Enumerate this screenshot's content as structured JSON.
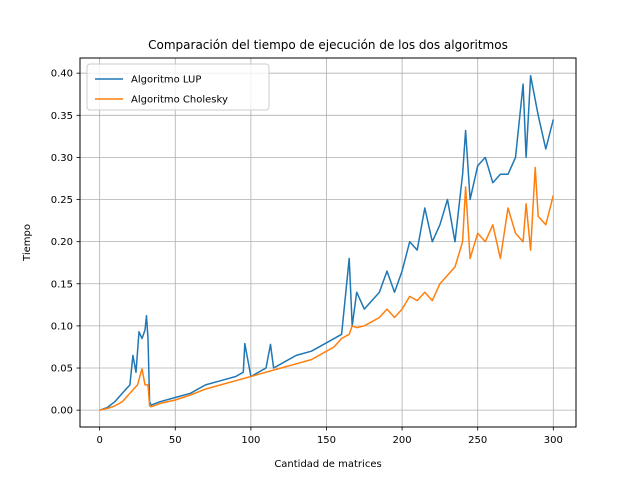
{
  "chart_data": {
    "type": "line",
    "title": "Comparación del tiempo de ejecución de los dos algoritmos",
    "xlabel": "Cantidad de matrices",
    "ylabel": "Tiempo",
    "xlim": [
      -13,
      315
    ],
    "ylim": [
      -0.02,
      0.418
    ],
    "xticks": [
      0,
      50,
      100,
      150,
      200,
      250,
      300
    ],
    "xtick_labels": [
      "0",
      "50",
      "100",
      "150",
      "200",
      "250",
      "300"
    ],
    "yticks": [
      0.0,
      0.05,
      0.1,
      0.15,
      0.2,
      0.25,
      0.3,
      0.35,
      0.4
    ],
    "ytick_labels": [
      "0.00",
      "0.05",
      "0.10",
      "0.15",
      "0.20",
      "0.25",
      "0.30",
      "0.35",
      "0.40"
    ],
    "grid": true,
    "legend_position": "top-left",
    "series": [
      {
        "name": "Algoritmo LUP",
        "color": "#1f77b4",
        "x": [
          0,
          5,
          10,
          15,
          20,
          22,
          24,
          26,
          28,
          30,
          31,
          32,
          33,
          34,
          40,
          50,
          60,
          70,
          80,
          90,
          95,
          96,
          100,
          110,
          113,
          115,
          120,
          130,
          140,
          150,
          160,
          165,
          167,
          170,
          175,
          180,
          185,
          190,
          195,
          200,
          205,
          210,
          215,
          220,
          225,
          230,
          235,
          240,
          242,
          245,
          250,
          255,
          260,
          265,
          270,
          275,
          280,
          282,
          285,
          290,
          295,
          300
        ],
        "y": [
          0.0,
          0.003,
          0.01,
          0.02,
          0.03,
          0.065,
          0.045,
          0.093,
          0.085,
          0.095,
          0.112,
          0.085,
          0.01,
          0.006,
          0.01,
          0.015,
          0.02,
          0.03,
          0.035,
          0.04,
          0.045,
          0.079,
          0.04,
          0.05,
          0.078,
          0.05,
          0.055,
          0.065,
          0.07,
          0.08,
          0.09,
          0.18,
          0.1,
          0.14,
          0.12,
          0.13,
          0.14,
          0.165,
          0.14,
          0.165,
          0.2,
          0.19,
          0.24,
          0.2,
          0.22,
          0.25,
          0.2,
          0.28,
          0.332,
          0.25,
          0.29,
          0.3,
          0.27,
          0.28,
          0.28,
          0.3,
          0.387,
          0.3,
          0.397,
          0.35,
          0.31,
          0.345
        ]
      },
      {
        "name": "Algoritmo Cholesky",
        "color": "#ff7f0e",
        "x": [
          0,
          5,
          10,
          15,
          20,
          25,
          28,
          30,
          32,
          33,
          34,
          40,
          50,
          60,
          70,
          80,
          90,
          100,
          110,
          120,
          130,
          140,
          150,
          155,
          160,
          165,
          167,
          170,
          175,
          180,
          185,
          190,
          195,
          200,
          205,
          210,
          215,
          220,
          225,
          230,
          235,
          240,
          242,
          245,
          250,
          255,
          260,
          265,
          270,
          275,
          280,
          282,
          285,
          288,
          290,
          295,
          300
        ],
        "y": [
          0.0,
          0.002,
          0.005,
          0.01,
          0.02,
          0.03,
          0.049,
          0.03,
          0.03,
          0.005,
          0.004,
          0.008,
          0.012,
          0.018,
          0.025,
          0.03,
          0.035,
          0.04,
          0.045,
          0.05,
          0.055,
          0.06,
          0.07,
          0.075,
          0.085,
          0.09,
          0.1,
          0.098,
          0.1,
          0.105,
          0.11,
          0.12,
          0.11,
          0.12,
          0.135,
          0.13,
          0.14,
          0.13,
          0.15,
          0.16,
          0.17,
          0.2,
          0.265,
          0.18,
          0.21,
          0.2,
          0.22,
          0.18,
          0.24,
          0.21,
          0.2,
          0.245,
          0.19,
          0.288,
          0.23,
          0.22,
          0.255
        ]
      }
    ]
  }
}
